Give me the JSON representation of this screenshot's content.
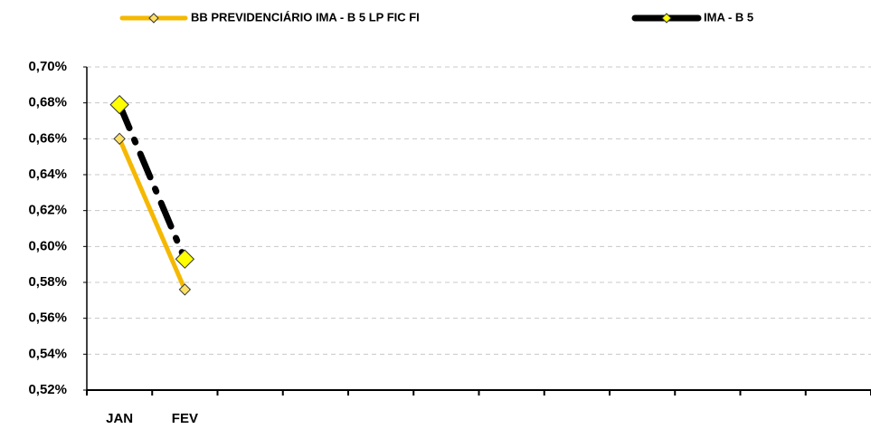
{
  "chart_data": {
    "type": "line",
    "categories": [
      "JAN",
      "FEV",
      null,
      null,
      null,
      null,
      null,
      null,
      null,
      null,
      null,
      null
    ],
    "series": [
      {
        "name": "BB PREVIDENCIÁRIO IMA - B 5 LP FIC FI",
        "color": "#f5b800",
        "marker_color": "#ffe066",
        "marker_size": 6,
        "dashed": false,
        "values": [
          0.66,
          0.576,
          null,
          null,
          null,
          null,
          null,
          null,
          null,
          null,
          null,
          null
        ]
      },
      {
        "name": "IMA - B 5",
        "color": "#000000",
        "marker_color": "#ffff00",
        "marker_size": 10,
        "dashed": true,
        "values": [
          0.679,
          0.593,
          null,
          null,
          null,
          null,
          null,
          null,
          null,
          null,
          null,
          null
        ]
      }
    ],
    "ylim": [
      0.52,
      0.7
    ],
    "yticks": [
      {
        "value": 0.52,
        "label": "0,52%"
      },
      {
        "value": 0.54,
        "label": "0,54%"
      },
      {
        "value": 0.56,
        "label": "0,56%"
      },
      {
        "value": 0.58,
        "label": "0,58%"
      },
      {
        "value": 0.6,
        "label": "0,60%"
      },
      {
        "value": 0.62,
        "label": "0,62%"
      },
      {
        "value": 0.64,
        "label": "0,64%"
      },
      {
        "value": 0.66,
        "label": "0,66%"
      },
      {
        "value": 0.68,
        "label": "0,68%"
      },
      {
        "value": 0.7,
        "label": "0,70%"
      }
    ],
    "grid": true,
    "legend": "top"
  }
}
